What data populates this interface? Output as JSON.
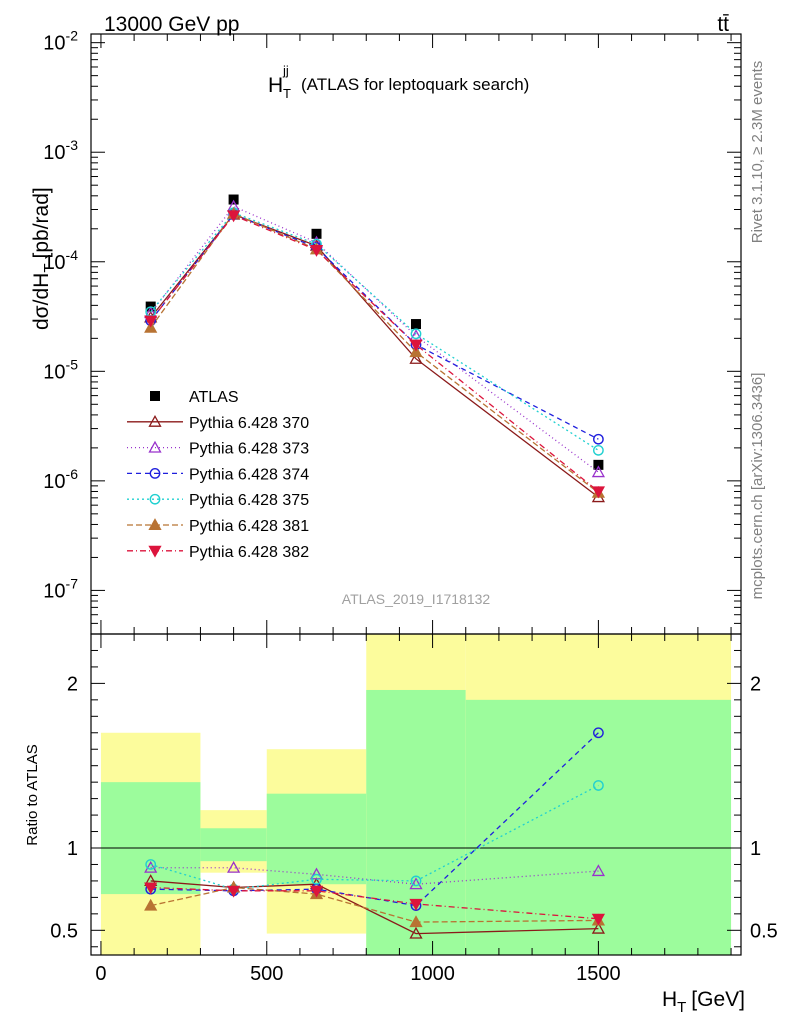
{
  "header": {
    "energy_label": "13000 GeV pp",
    "process_label": "tt̄"
  },
  "side_labels": {
    "rivet": "Rivet 3.1.10, ≥ 2.3M events",
    "mcplots": "mcplots.cern.ch [arXiv:1306.3436]"
  },
  "colors": {
    "data": "#000000",
    "green_band": "#9cfc9c",
    "yellow_band": "#fcfc9c"
  },
  "chart_data": [
    {
      "type": "line",
      "title": "H_T^jj (ATLAS for leptoquark search)",
      "title_main": "H",
      "title_sub": "T",
      "title_sup": "jj",
      "title_rest": "(ATLAS for leptoquark search)",
      "ylabel_main": "dσ/dH",
      "ylabel_sub": "T",
      "ylabel_rest": "[pb/rad]",
      "y_scale": "log",
      "ylim": [
        4e-08,
        0.012
      ],
      "xlim": [
        -30,
        1930
      ],
      "y_ticks": [
        {
          "value": 1e-07,
          "base": "10",
          "exp": "-7"
        },
        {
          "value": 1e-06,
          "base": "10",
          "exp": "-6"
        },
        {
          "value": 1e-05,
          "base": "10",
          "exp": "-5"
        },
        {
          "value": 0.0001,
          "base": "10",
          "exp": "-4"
        },
        {
          "value": 0.001,
          "base": "10",
          "exp": "-3"
        },
        {
          "value": 0.01,
          "base": "10",
          "exp": "-2"
        }
      ],
      "watermark": "ATLAS_2019_I1718132",
      "legend_position": "bottom-left",
      "x": [
        150,
        400,
        650,
        950,
        1500
      ],
      "series": [
        {
          "name": "ATLAS",
          "color": "#000000",
          "marker": "square-filled",
          "dash": "none",
          "values": [
            3.9e-05,
            0.00037,
            0.00018,
            2.7e-05,
            1.4e-06
          ]
        },
        {
          "name": "Pythia 6.428 370",
          "color": "#8b1a1a",
          "marker": "triangle-up-open",
          "dash": "solid",
          "values": [
            3.1e-05,
            0.00027,
            0.00014,
            1.3e-05,
            7.1e-07
          ]
        },
        {
          "name": "Pythia 6.428 373",
          "color": "#9932cc",
          "marker": "triangle-up-open",
          "dash": "1,3",
          "values": [
            3.4e-05,
            0.00032,
            0.00015,
            2.1e-05,
            1.2e-06
          ]
        },
        {
          "name": "Pythia 6.428 374",
          "color": "#1f1fdd",
          "marker": "circle-open",
          "dash": "5,4",
          "values": [
            2.9e-05,
            0.00027,
            0.000135,
            1.75e-05,
            2.4e-06
          ]
        },
        {
          "name": "Pythia 6.428 375",
          "color": "#20d0d0",
          "marker": "circle-open",
          "dash": "2,3",
          "values": [
            3.5e-05,
            0.00028,
            0.000145,
            2.2e-05,
            1.9e-06
          ]
        },
        {
          "name": "Pythia 6.428 381",
          "color": "#b87333",
          "marker": "triangle-up-filled",
          "dash": "6,3",
          "values": [
            2.5e-05,
            0.000275,
            0.00013,
            1.5e-05,
            7.8e-07
          ]
        },
        {
          "name": "Pythia 6.428 382",
          "color": "#dc143c",
          "marker": "triangle-down-filled",
          "dash": "6,3,1,3",
          "values": [
            2.9e-05,
            0.000265,
            0.000128,
            1.75e-05,
            8e-07
          ]
        }
      ]
    },
    {
      "type": "line",
      "ylabel": "Ratio to ATLAS",
      "xlabel_main": "H",
      "xlabel_sub": "T",
      "xlabel_rest": "[GeV]",
      "xlim": [
        -30,
        1930
      ],
      "ylim": [
        0.35,
        2.3
      ],
      "y_ticks": [
        0.5,
        1,
        2
      ],
      "y_tick_labels": [
        "0.5",
        "1",
        "2"
      ],
      "x_ticks": [
        0,
        500,
        1000,
        1500
      ],
      "x_tick_labels": [
        "0",
        "500",
        "1000",
        "1500"
      ],
      "bins": [
        [
          0,
          300
        ],
        [
          300,
          500
        ],
        [
          500,
          800
        ],
        [
          800,
          1100
        ],
        [
          1100,
          1900
        ]
      ],
      "yellow_band": [
        [
          0.35,
          1.7
        ],
        [
          0.85,
          1.23
        ],
        [
          0.48,
          1.6
        ],
        [
          0.35,
          2.3
        ],
        [
          0.35,
          2.3
        ]
      ],
      "green_band": [
        [
          0.72,
          1.4
        ],
        [
          0.92,
          1.12
        ],
        [
          0.78,
          1.33
        ],
        [
          0.35,
          1.96
        ],
        [
          0.35,
          1.9
        ]
      ],
      "x": [
        150,
        400,
        650,
        950,
        1500
      ],
      "series": [
        {
          "name": "Pythia 6.428 370",
          "values": [
            0.8,
            0.76,
            0.78,
            0.48,
            0.51
          ]
        },
        {
          "name": "Pythia 6.428 373",
          "values": [
            0.88,
            0.88,
            0.84,
            0.78,
            0.86
          ]
        },
        {
          "name": "Pythia 6.428 374",
          "values": [
            0.75,
            0.74,
            0.75,
            0.65,
            1.7
          ]
        },
        {
          "name": "Pythia 6.428 375",
          "values": [
            0.9,
            0.75,
            0.81,
            0.8,
            1.38
          ]
        },
        {
          "name": "Pythia 6.428 381",
          "values": [
            0.65,
            0.76,
            0.72,
            0.55,
            0.56
          ]
        },
        {
          "name": "Pythia 6.428 382",
          "values": [
            0.76,
            0.74,
            0.74,
            0.66,
            0.57
          ]
        }
      ]
    }
  ]
}
